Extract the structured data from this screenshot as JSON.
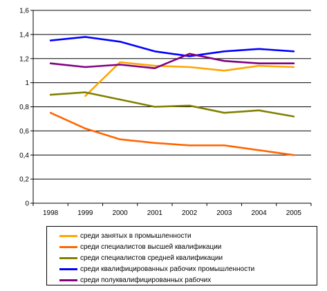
{
  "chart_data": {
    "type": "line",
    "title": "",
    "xlabel": "",
    "ylabel": "",
    "categories": [
      "1998",
      "1999",
      "2000",
      "2001",
      "2002",
      "2003",
      "2004",
      "2005"
    ],
    "y_ticks": [
      "0",
      "0,2",
      "0,4",
      "0,6",
      "0,8",
      "1",
      "1,2",
      "1,4",
      "1,6"
    ],
    "ylim": [
      0,
      1.6
    ],
    "grid": "horizontal",
    "legend_position": "bottom",
    "series": [
      {
        "name": "среди занятых в промышленности",
        "color": "#ffa500",
        "values": [
          null,
          0.89,
          1.17,
          1.14,
          1.13,
          1.1,
          1.14,
          1.13
        ]
      },
      {
        "name": "среди специалистов  высшей квалификации",
        "color": "#ff6600",
        "values": [
          0.75,
          0.62,
          0.53,
          0.5,
          0.48,
          0.48,
          0.44,
          0.4
        ]
      },
      {
        "name": "среди специалистов  средней квалификации",
        "color": "#808000",
        "values": [
          0.9,
          0.92,
          0.86,
          0.8,
          0.81,
          0.75,
          0.77,
          0.72
        ]
      },
      {
        "name": "среди квалифицированных рабочих промышленности",
        "color": "#0000ff",
        "values": [
          1.35,
          1.38,
          1.34,
          1.26,
          1.22,
          1.26,
          1.28,
          1.26
        ]
      },
      {
        "name": "среди полуквалифицированных рабочих",
        "color": "#800080",
        "values": [
          1.16,
          1.13,
          1.15,
          1.12,
          1.24,
          1.18,
          1.16,
          1.16
        ]
      }
    ]
  }
}
